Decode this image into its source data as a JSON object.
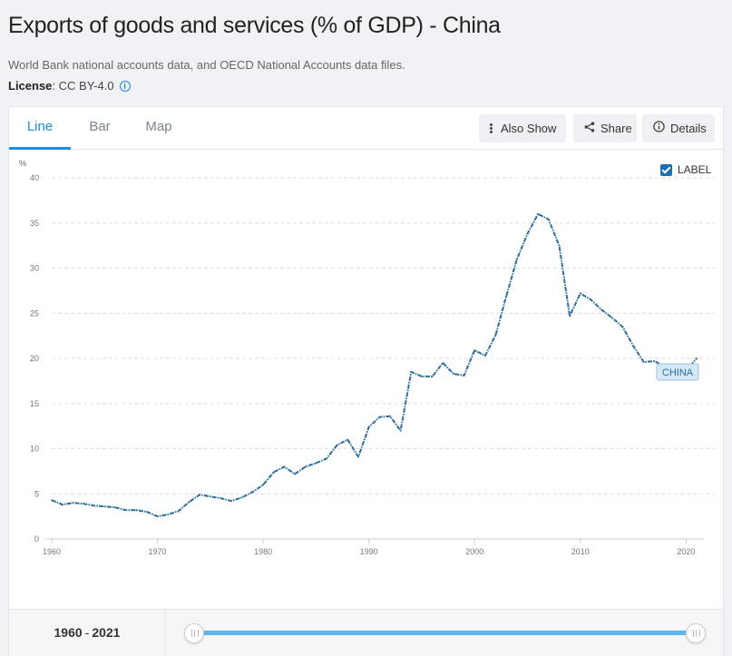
{
  "header": {
    "title": "Exports of goods and services (% of GDP) - China",
    "source": "World Bank national accounts data, and OECD National Accounts data files.",
    "license_label": "License",
    "license_value": ": CC BY-4.0",
    "info_icon": "info-icon"
  },
  "tabs": [
    {
      "label": "Line",
      "active": true
    },
    {
      "label": "Bar",
      "active": false
    },
    {
      "label": "Map",
      "active": false
    }
  ],
  "toolbar": {
    "also_show": "Also Show",
    "share": "Share",
    "details": "Details",
    "icons": [
      "vertical-dots-icon",
      "share-icon",
      "info-icon"
    ]
  },
  "legend": {
    "label": "LABEL",
    "checked": true
  },
  "footer": {
    "range_start": "1960",
    "range_end": "2021",
    "range_sep": "-"
  },
  "colors": {
    "line": "#2b6e9e",
    "accent": "#1a8cd8",
    "series_label_bg": "#d5e8f5",
    "series_label_border": "#9cc4e0"
  },
  "chart_data": {
    "type": "line",
    "ylabel": "%",
    "ylim": [
      0,
      40
    ],
    "yticks": [
      0,
      5,
      10,
      15,
      20,
      25,
      30,
      35,
      40
    ],
    "xlim": [
      1960,
      2021
    ],
    "xticks": [
      1960,
      1970,
      1980,
      1990,
      2000,
      2010,
      2020
    ],
    "grid": true,
    "series": [
      {
        "name": "CHINA",
        "x": [
          1960,
          1961,
          1962,
          1963,
          1964,
          1965,
          1966,
          1967,
          1968,
          1969,
          1970,
          1971,
          1972,
          1973,
          1974,
          1975,
          1976,
          1977,
          1978,
          1979,
          1980,
          1981,
          1982,
          1983,
          1984,
          1985,
          1986,
          1987,
          1988,
          1989,
          1990,
          1991,
          1992,
          1993,
          1994,
          1995,
          1996,
          1997,
          1998,
          1999,
          2000,
          2001,
          2002,
          2003,
          2004,
          2005,
          2006,
          2007,
          2008,
          2009,
          2010,
          2011,
          2012,
          2013,
          2014,
          2015,
          2016,
          2017,
          2018,
          2019,
          2020,
          2021
        ],
        "values": [
          4.3,
          3.8,
          4.0,
          3.9,
          3.7,
          3.6,
          3.5,
          3.2,
          3.2,
          3.0,
          2.5,
          2.7,
          3.1,
          4.1,
          4.9,
          4.7,
          4.5,
          4.2,
          4.6,
          5.2,
          6.0,
          7.4,
          8.0,
          7.2,
          8.0,
          8.4,
          8.9,
          10.4,
          11.0,
          9.1,
          12.4,
          13.5,
          13.6,
          12.0,
          18.5,
          18.0,
          18.0,
          19.5,
          18.3,
          18.1,
          20.9,
          20.3,
          22.6,
          26.9,
          31.0,
          33.8,
          36.0,
          35.4,
          32.5,
          24.7,
          27.2,
          26.5,
          25.4,
          24.5,
          23.5,
          21.4,
          19.6,
          19.7,
          19.1,
          18.4,
          18.6,
          20.0
        ]
      }
    ]
  }
}
